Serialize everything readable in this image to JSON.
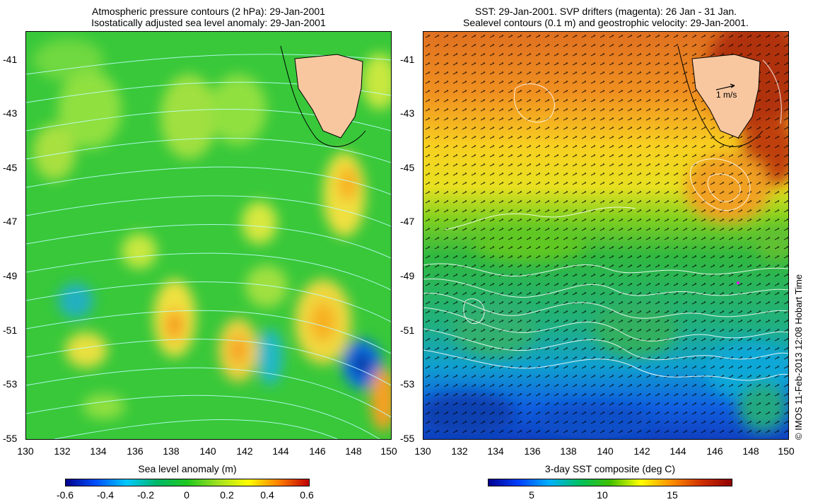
{
  "left_panel": {
    "title_line1": "Atmospheric pressure contours (2 hPa): 29-Jan-2001",
    "title_line2": "Isostatically adjusted sea level anomaly: 29-Jan-2001",
    "colorbar_label": "Sea level anomaly (m)",
    "colorbar_ticks": [
      "-0.6",
      "-0.4",
      "-0.2",
      "0",
      "0.2",
      "0.4",
      "0.6"
    ]
  },
  "right_panel": {
    "title_line1": "SST: 29-Jan-2001. SVP drifters (magenta): 26 Jan - 31 Jan.",
    "title_line2": "Sealevel contours (0.1 m) and geostrophic velocity: 29-Jan-2001.",
    "colorbar_label": "3-day SST composite (deg C)",
    "colorbar_ticks": [
      "5",
      "10",
      "15"
    ],
    "scale_arrow_label": "1 m/s"
  },
  "axes": {
    "lat_ticks": [
      "-41",
      "-43",
      "-45",
      "-47",
      "-49",
      "-51",
      "-53",
      "-55"
    ],
    "lon_ticks": [
      "130",
      "132",
      "134",
      "136",
      "138",
      "140",
      "142",
      "144",
      "146",
      "148",
      "150"
    ]
  },
  "copyright": "© IMOS 11-Feb-2013 12:08 Hobart Time",
  "colors": {
    "land": "#f8c7a0",
    "sla_scale": [
      "#00008c",
      "#0050ff",
      "#00c8ff",
      "#00c060",
      "#20c820",
      "#a0e020",
      "#ffff00",
      "#ff8000",
      "#c00000"
    ],
    "sst_scale": [
      "#000090",
      "#0040ff",
      "#00b0ff",
      "#00c060",
      "#40c000",
      "#ffff00",
      "#ff9000",
      "#d03000",
      "#900000"
    ]
  }
}
